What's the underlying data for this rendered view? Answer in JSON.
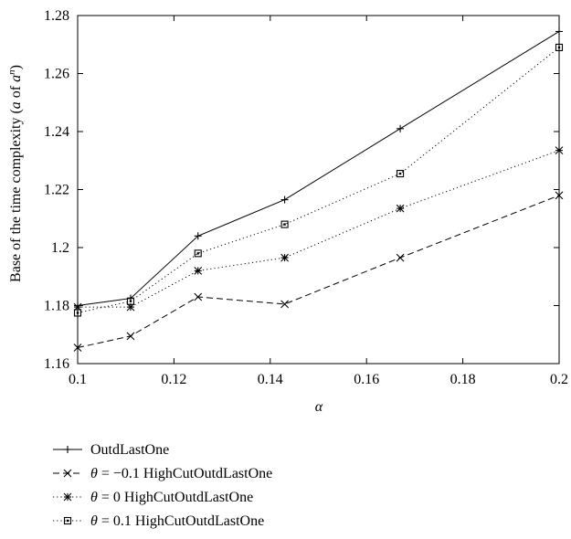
{
  "chart_data": {
    "type": "line",
    "title": "",
    "xlabel": "α",
    "ylabel_parts": [
      "Base of the time complexity (",
      "a",
      " of ",
      "a",
      "n",
      ")"
    ],
    "xlim": [
      0.1,
      0.2
    ],
    "ylim": [
      1.16,
      1.28
    ],
    "xticks": [
      0.1,
      0.12,
      0.14,
      0.16,
      0.18,
      0.2
    ],
    "xtick_labels": [
      "0.1",
      "0.12",
      "0.14",
      "0.16",
      "0.18",
      "0.2"
    ],
    "yticks": [
      1.16,
      1.18,
      1.2,
      1.22,
      1.24,
      1.26,
      1.28
    ],
    "ytick_labels": [
      "1.16",
      "1.18",
      "1.2",
      "1.22",
      "1.24",
      "1.26",
      "1.28"
    ],
    "grid": false,
    "legend_position": "below",
    "x": [
      0.1,
      0.111,
      0.125,
      0.143,
      0.167,
      0.2
    ],
    "series": [
      {
        "name": "OutdLastOne",
        "legend_parts": [
          "",
          "",
          "",
          "OutdLastOne"
        ],
        "marker": "plus",
        "dash": "solid",
        "values": [
          1.18,
          1.1825,
          1.204,
          1.2165,
          1.241,
          1.2745
        ]
      },
      {
        "name": "θ = −0.1 HighCutOutdLastOne",
        "legend_parts": [
          "θ",
          " = ",
          "−0.1",
          " HighCutOutdLastOne"
        ],
        "marker": "x",
        "dash": "dashed",
        "values": [
          1.1655,
          1.1695,
          1.183,
          1.1805,
          1.1965,
          1.218
        ]
      },
      {
        "name": "θ = 0 HighCutOutdLastOne",
        "legend_parts": [
          "θ",
          " = ",
          "0",
          " HighCutOutdLastOne"
        ],
        "marker": "star",
        "dash": "dotted",
        "values": [
          1.1795,
          1.1795,
          1.192,
          1.1965,
          1.2135,
          1.2335
        ]
      },
      {
        "name": "θ = 0.1 HighCutOutdLastOne",
        "legend_parts": [
          "θ",
          " = ",
          "0.1",
          " HighCutOutdLastOne"
        ],
        "marker": "square",
        "dash": "dotted",
        "values": [
          1.1775,
          1.1815,
          1.198,
          1.208,
          1.2255,
          1.269
        ]
      }
    ]
  }
}
